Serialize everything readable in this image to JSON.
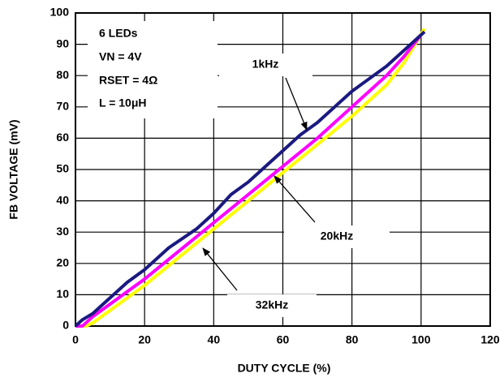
{
  "chart_data": {
    "type": "line",
    "x_label": "DUTY CYCLE (%)",
    "y_label": "FB VOLTAGE (mV)",
    "annotations": [
      "6 LEDs",
      "VN = 4V",
      "RSET = 4Ω",
      "L = 10μH",
      "1kHz",
      "20kHz",
      "32kHz"
    ],
    "xlim": [
      0,
      120
    ],
    "xticks": [
      0,
      20,
      40,
      60,
      80,
      100,
      120
    ],
    "ylim": [
      0,
      100
    ],
    "yticks": [
      0,
      10,
      20,
      30,
      40,
      50,
      60,
      70,
      80,
      90,
      100
    ],
    "grid": true,
    "series": [
      {
        "name": "32kHz",
        "color": "#ffff00",
        "x": [
          0,
          3,
          5,
          10,
          20,
          30,
          40,
          50,
          60,
          70,
          80,
          90,
          95,
          101
        ],
        "values": [
          0,
          0,
          1,
          5,
          13,
          22,
          31,
          40,
          49,
          58,
          67,
          77,
          84,
          95
        ]
      },
      {
        "name": "20kHz",
        "color": "#ff00ff",
        "x": [
          0,
          2,
          5,
          10,
          15,
          20,
          30,
          40,
          50,
          60,
          70,
          80,
          90,
          95,
          100
        ],
        "values": [
          0,
          0,
          3,
          7,
          11,
          15,
          24,
          33,
          42,
          51,
          60,
          70,
          80,
          86,
          93
        ]
      },
      {
        "name": "1kHz",
        "color": "#1a1a80",
        "x": [
          0,
          2,
          5,
          10,
          15,
          20,
          27,
          35,
          40,
          45,
          50,
          55,
          60,
          65,
          70,
          75,
          80,
          85,
          90,
          95,
          100,
          101
        ],
        "values": [
          0,
          2,
          4,
          9,
          14,
          18,
          25,
          31,
          36,
          42,
          46,
          51,
          56,
          61,
          65,
          70,
          75,
          79,
          83,
          88,
          93,
          94
        ]
      }
    ]
  }
}
